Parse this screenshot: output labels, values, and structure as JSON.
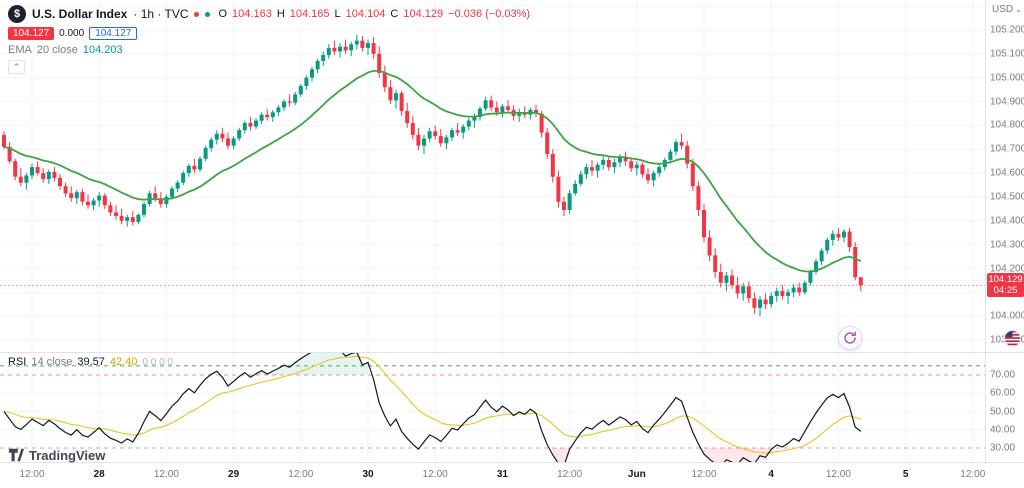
{
  "header": {
    "symbol_icon": "$",
    "title": "U.S. Dollar Index",
    "meta": "· 1h · TVC",
    "ohlc": {
      "o_label": "O",
      "o": "104.163",
      "h_label": "H",
      "h": "104.165",
      "l_label": "L",
      "l": "104.104",
      "c_label": "C",
      "c": "104.129",
      "change": "−0.036 (−0.03%)"
    },
    "row2": {
      "left_badge": "104.127",
      "middle": "0.000",
      "right_badge": "104.127"
    },
    "ema": {
      "name": "EMA",
      "params": "20 close",
      "value": "104.203"
    },
    "collapse_glyph": "⌃"
  },
  "rsi_legend": {
    "name": "RSI",
    "params": "14 close",
    "value": "39.57",
    "ma_value": "42.40",
    "extra": "0 0 0 0"
  },
  "price_axis": {
    "currency": "USD",
    "caret": "⌄",
    "last_price": "104.129",
    "countdown": "04:25"
  },
  "logo": {
    "text": "TradingView"
  },
  "colors": {
    "up": "#089981",
    "down": "#f23645",
    "ema": "#43a047",
    "rsi_line": "#131722",
    "rsi_ma": "#e3c52e",
    "grid": "#f0f3fa",
    "axis_text": "#787b86",
    "level_green": "#4caf50",
    "level_red": "rgba(242,54,69,0.55)",
    "oversold_fill": "rgba(242,54,69,0.12)",
    "overbought_fill": "rgba(8,153,129,0.10)"
  },
  "chart_data": {
    "type": "candlestick",
    "symbol": "U.S. Dollar Index",
    "exchange": "TVC",
    "interval": "1h",
    "last_price": 104.129,
    "visible_price_range": [
      103.85,
      105.33
    ],
    "price_ticks": [
      105.2,
      105.1,
      105.0,
      104.9,
      104.8,
      104.7,
      104.6,
      104.5,
      104.4,
      104.3,
      104.2,
      104.0,
      103.9
    ],
    "time_ticks": [
      {
        "bar": 5,
        "label": "12:00",
        "day": false
      },
      {
        "bar": 17,
        "label": "28",
        "day": true
      },
      {
        "bar": 29,
        "label": "12:00",
        "day": false
      },
      {
        "bar": 41,
        "label": "29",
        "day": true
      },
      {
        "bar": 53,
        "label": "12:00",
        "day": false
      },
      {
        "bar": 65,
        "label": "30",
        "day": true
      },
      {
        "bar": 77,
        "label": "12:00",
        "day": false
      },
      {
        "bar": 89,
        "label": "31",
        "day": true
      },
      {
        "bar": 101,
        "label": "12:00",
        "day": false
      },
      {
        "bar": 113,
        "label": "Jun",
        "day": true
      },
      {
        "bar": 125,
        "label": "12:00",
        "day": false
      },
      {
        "bar": 137,
        "label": "4",
        "day": true
      },
      {
        "bar": 149,
        "label": "12:00",
        "day": false
      },
      {
        "bar": 161,
        "label": "5",
        "day": true
      },
      {
        "bar": 173,
        "label": "12:00",
        "day": false
      }
    ],
    "overlays": [
      {
        "name": "EMA",
        "period": 20,
        "source": "close",
        "last_value": 104.203
      }
    ],
    "lower_pane": {
      "type": "line",
      "name": "RSI",
      "period": 14,
      "source": "close",
      "last_value": 39.57,
      "ma": {
        "period": 14,
        "last_value": 42.4
      },
      "levels": {
        "upper": 75,
        "overbought": 70,
        "oversold": 30
      },
      "y_ticks": [
        70,
        60,
        50,
        40,
        30
      ]
    },
    "candles": [
      [
        104.76,
        104.775,
        104.7,
        104.71
      ],
      [
        104.71,
        104.73,
        104.64,
        104.65
      ],
      [
        104.65,
        104.66,
        104.57,
        104.585
      ],
      [
        104.585,
        104.62,
        104.545,
        104.56
      ],
      [
        104.56,
        104.6,
        104.53,
        104.59
      ],
      [
        104.59,
        104.64,
        104.575,
        104.625
      ],
      [
        104.625,
        104.65,
        104.59,
        104.6
      ],
      [
        104.6,
        104.62,
        104.56,
        104.575
      ],
      [
        104.575,
        104.615,
        104.555,
        104.605
      ],
      [
        104.605,
        104.625,
        104.565,
        104.58
      ],
      [
        104.58,
        104.595,
        104.53,
        104.545
      ],
      [
        104.545,
        104.56,
        104.5,
        104.515
      ],
      [
        104.515,
        104.545,
        104.48,
        104.495
      ],
      [
        104.495,
        104.53,
        104.47,
        104.52
      ],
      [
        104.52,
        104.535,
        104.465,
        104.48
      ],
      [
        104.48,
        104.51,
        104.45,
        104.465
      ],
      [
        104.465,
        104.495,
        104.445,
        104.485
      ],
      [
        104.485,
        104.52,
        104.46,
        104.505
      ],
      [
        104.505,
        104.515,
        104.45,
        104.465
      ],
      [
        104.465,
        104.48,
        104.42,
        104.435
      ],
      [
        104.435,
        104.465,
        104.405,
        104.42
      ],
      [
        104.42,
        104.45,
        104.385,
        104.4
      ],
      [
        104.4,
        104.425,
        104.375,
        104.415
      ],
      [
        104.415,
        104.44,
        104.38,
        104.395
      ],
      [
        104.395,
        104.43,
        104.385,
        104.425
      ],
      [
        104.425,
        104.48,
        104.415,
        104.47
      ],
      [
        104.47,
        104.525,
        104.46,
        104.515
      ],
      [
        104.515,
        104.545,
        104.48,
        104.495
      ],
      [
        104.495,
        104.52,
        104.455,
        104.47
      ],
      [
        104.47,
        104.51,
        104.455,
        104.5
      ],
      [
        104.5,
        104.545,
        104.49,
        104.535
      ],
      [
        104.535,
        104.57,
        104.52,
        104.56
      ],
      [
        104.56,
        104.61,
        104.55,
        104.6
      ],
      [
        104.6,
        104.64,
        104.585,
        104.63
      ],
      [
        104.63,
        104.66,
        104.6,
        104.615
      ],
      [
        104.615,
        104.67,
        104.605,
        104.66
      ],
      [
        104.66,
        104.715,
        104.65,
        104.705
      ],
      [
        104.705,
        104.75,
        104.69,
        104.74
      ],
      [
        104.74,
        104.78,
        104.72,
        104.765
      ],
      [
        104.765,
        104.79,
        104.73,
        104.745
      ],
      [
        104.745,
        104.77,
        104.7,
        104.715
      ],
      [
        104.715,
        104.755,
        104.7,
        104.745
      ],
      [
        104.745,
        104.79,
        104.735,
        104.78
      ],
      [
        104.78,
        104.82,
        104.765,
        104.81
      ],
      [
        104.81,
        104.835,
        104.78,
        104.795
      ],
      [
        104.795,
        104.83,
        104.785,
        104.82
      ],
      [
        104.82,
        104.855,
        104.805,
        104.845
      ],
      [
        104.845,
        104.87,
        104.82,
        104.835
      ],
      [
        104.835,
        104.865,
        104.815,
        104.855
      ],
      [
        104.855,
        104.885,
        104.84,
        104.875
      ],
      [
        104.875,
        104.91,
        104.86,
        104.9
      ],
      [
        104.9,
        104.93,
        104.88,
        104.895
      ],
      [
        104.895,
        104.94,
        104.885,
        104.93
      ],
      [
        104.93,
        104.975,
        104.92,
        104.965
      ],
      [
        104.965,
        105.01,
        104.95,
        105.0
      ],
      [
        105.0,
        105.045,
        104.985,
        105.035
      ],
      [
        105.035,
        105.08,
        105.02,
        105.07
      ],
      [
        105.07,
        105.11,
        105.05,
        105.095
      ],
      [
        105.095,
        105.14,
        105.08,
        105.125
      ],
      [
        105.125,
        105.155,
        105.095,
        105.11
      ],
      [
        105.11,
        105.145,
        105.085,
        105.13
      ],
      [
        105.13,
        105.16,
        105.1,
        105.115
      ],
      [
        105.115,
        105.15,
        105.09,
        105.14
      ],
      [
        105.14,
        105.18,
        105.12,
        105.155
      ],
      [
        105.155,
        105.175,
        105.11,
        105.125
      ],
      [
        105.125,
        105.16,
        105.095,
        105.145
      ],
      [
        105.145,
        105.17,
        105.08,
        105.1
      ],
      [
        105.1,
        105.13,
        105.0,
        105.02
      ],
      [
        105.02,
        105.05,
        104.94,
        104.96
      ],
      [
        104.96,
        104.99,
        104.89,
        104.905
      ],
      [
        104.905,
        104.95,
        104.87,
        104.935
      ],
      [
        104.935,
        104.945,
        104.84,
        104.86
      ],
      [
        104.86,
        104.895,
        104.79,
        104.81
      ],
      [
        104.81,
        104.84,
        104.74,
        104.76
      ],
      [
        104.76,
        104.79,
        104.695,
        104.715
      ],
      [
        104.715,
        104.76,
        104.68,
        104.745
      ],
      [
        104.745,
        104.79,
        104.73,
        104.775
      ],
      [
        104.775,
        104.8,
        104.74,
        104.755
      ],
      [
        104.755,
        104.785,
        104.71,
        104.725
      ],
      [
        104.725,
        104.76,
        104.7,
        104.75
      ],
      [
        104.75,
        104.79,
        104.735,
        104.78
      ],
      [
        104.78,
        104.81,
        104.755,
        104.77
      ],
      [
        104.77,
        104.805,
        104.745,
        104.795
      ],
      [
        104.795,
        104.83,
        104.78,
        104.82
      ],
      [
        104.82,
        104.85,
        104.79,
        104.835
      ],
      [
        104.835,
        104.88,
        104.82,
        104.87
      ],
      [
        104.87,
        104.92,
        104.86,
        104.905
      ],
      [
        104.905,
        104.925,
        104.86,
        104.875
      ],
      [
        104.875,
        104.9,
        104.84,
        104.855
      ],
      [
        104.855,
        104.89,
        104.835,
        104.88
      ],
      [
        104.88,
        104.905,
        104.85,
        104.865
      ],
      [
        104.865,
        104.885,
        104.82,
        104.84
      ],
      [
        104.84,
        104.87,
        104.815,
        104.855
      ],
      [
        104.855,
        104.88,
        104.83,
        104.845
      ],
      [
        104.845,
        104.875,
        104.825,
        104.865
      ],
      [
        104.865,
        104.885,
        104.835,
        104.85
      ],
      [
        104.85,
        104.86,
        104.75,
        104.77
      ],
      [
        104.77,
        104.79,
        104.66,
        104.68
      ],
      [
        104.68,
        104.7,
        104.56,
        104.585
      ],
      [
        104.585,
        104.61,
        104.455,
        104.48
      ],
      [
        104.48,
        104.5,
        104.42,
        104.445
      ],
      [
        104.445,
        104.53,
        104.43,
        104.515
      ],
      [
        104.515,
        104.57,
        104.505,
        104.555
      ],
      [
        104.555,
        104.61,
        104.545,
        104.595
      ],
      [
        104.595,
        104.64,
        104.575,
        104.625
      ],
      [
        104.625,
        104.655,
        104.59,
        104.61
      ],
      [
        104.61,
        104.645,
        104.58,
        104.635
      ],
      [
        104.635,
        104.67,
        104.615,
        104.655
      ],
      [
        104.655,
        104.67,
        104.61,
        104.625
      ],
      [
        104.625,
        104.66,
        104.6,
        104.645
      ],
      [
        104.645,
        104.68,
        104.625,
        104.665
      ],
      [
        104.665,
        104.69,
        104.63,
        104.65
      ],
      [
        104.65,
        104.665,
        104.605,
        104.62
      ],
      [
        104.62,
        104.65,
        104.59,
        104.635
      ],
      [
        104.635,
        104.645,
        104.58,
        104.595
      ],
      [
        104.595,
        104.62,
        104.555,
        104.57
      ],
      [
        104.57,
        104.61,
        104.545,
        104.6
      ],
      [
        104.6,
        104.635,
        104.585,
        104.625
      ],
      [
        104.625,
        104.665,
        104.61,
        104.655
      ],
      [
        104.655,
        104.7,
        104.64,
        104.69
      ],
      [
        104.69,
        104.74,
        104.675,
        104.73
      ],
      [
        104.73,
        104.765,
        104.7,
        104.715
      ],
      [
        104.715,
        104.735,
        104.62,
        104.64
      ],
      [
        104.64,
        104.66,
        104.525,
        104.545
      ],
      [
        104.545,
        104.565,
        104.42,
        104.445
      ],
      [
        104.445,
        104.47,
        104.31,
        104.33
      ],
      [
        104.33,
        104.36,
        104.23,
        104.255
      ],
      [
        104.255,
        104.285,
        104.16,
        104.185
      ],
      [
        104.185,
        104.22,
        104.12,
        104.14
      ],
      [
        104.14,
        104.185,
        104.105,
        104.17
      ],
      [
        104.17,
        104.195,
        104.115,
        104.13
      ],
      [
        104.13,
        104.165,
        104.075,
        104.095
      ],
      [
        104.095,
        104.14,
        104.065,
        104.125
      ],
      [
        104.125,
        104.145,
        104.055,
        104.075
      ],
      [
        104.075,
        104.1,
        104.01,
        104.035
      ],
      [
        104.035,
        104.085,
        104.0,
        104.07
      ],
      [
        104.07,
        104.095,
        104.03,
        104.05
      ],
      [
        104.05,
        104.1,
        104.035,
        104.085
      ],
      [
        104.085,
        104.12,
        104.06,
        104.105
      ],
      [
        104.105,
        104.13,
        104.07,
        104.085
      ],
      [
        104.085,
        104.115,
        104.05,
        104.1
      ],
      [
        104.1,
        104.135,
        104.08,
        104.12
      ],
      [
        104.12,
        104.14,
        104.085,
        104.1
      ],
      [
        104.1,
        104.15,
        104.09,
        104.14
      ],
      [
        104.14,
        104.195,
        104.13,
        104.185
      ],
      [
        104.185,
        104.24,
        104.175,
        104.23
      ],
      [
        104.23,
        104.285,
        104.215,
        104.275
      ],
      [
        104.275,
        104.33,
        104.26,
        104.32
      ],
      [
        104.32,
        104.36,
        104.295,
        104.345
      ],
      [
        104.345,
        104.37,
        104.315,
        104.33
      ],
      [
        104.33,
        104.365,
        104.31,
        104.355
      ],
      [
        104.355,
        104.37,
        104.27,
        104.29
      ],
      [
        104.29,
        104.31,
        104.15,
        104.163
      ],
      [
        104.163,
        104.165,
        104.104,
        104.129
      ]
    ]
  }
}
